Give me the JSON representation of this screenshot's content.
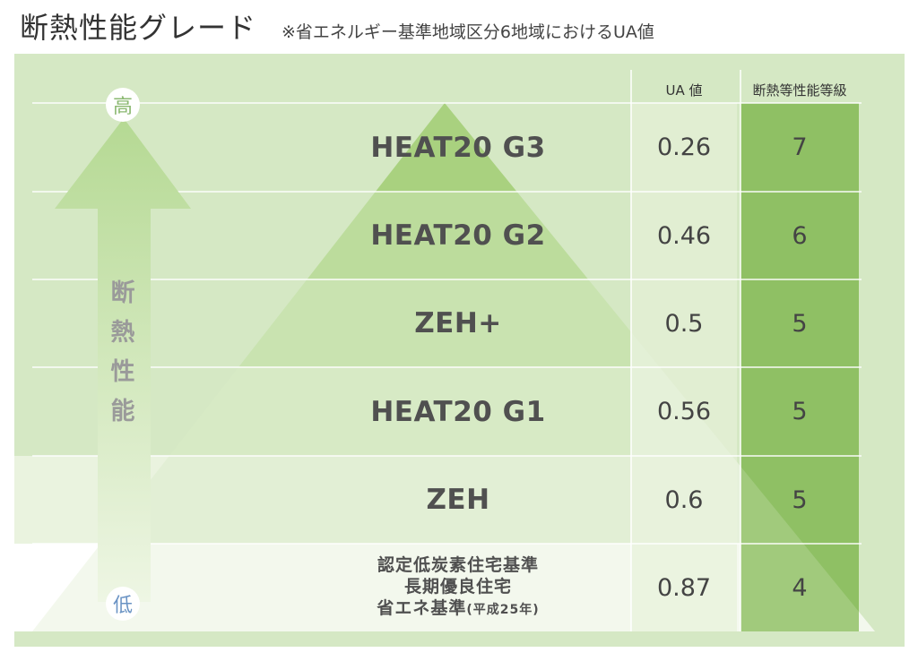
{
  "header": {
    "title": "断熱性能グレード",
    "subtitle": "※省エネルギー基準地域区分6地域におけるUA値"
  },
  "table": {
    "columns": {
      "ua": "UA 値",
      "grade": "断熱等性能等級"
    },
    "rows": [
      {
        "label_lines": [
          "HEAT20 G3"
        ],
        "ua": "0.26",
        "grade": "7"
      },
      {
        "label_lines": [
          "HEAT20 G2"
        ],
        "ua": "0.46",
        "grade": "6"
      },
      {
        "label_lines": [
          "ZEH+"
        ],
        "ua": "0.5",
        "grade": "5"
      },
      {
        "label_lines": [
          "HEAT20 G1"
        ],
        "ua": "0.56",
        "grade": "5"
      },
      {
        "label_lines": [
          "ZEH"
        ],
        "ua": "0.6",
        "grade": "5"
      },
      {
        "label_lines": [
          "認定低炭素住宅基準",
          "長期優良住宅",
          "省エネ基準"
        ],
        "label_note": "(平成25年)",
        "ua": "0.87",
        "grade": "4"
      }
    ]
  },
  "axis": {
    "high": "高",
    "low": "低",
    "label_chars": [
      "断",
      "熱",
      "性",
      "能"
    ]
  },
  "colors": {
    "panel_bg": "#d5e8c4",
    "grade_column": "#8fc064",
    "ua_column": "#e4efd6",
    "high_label": "#8ab870",
    "low_label": "#6a93c4"
  }
}
